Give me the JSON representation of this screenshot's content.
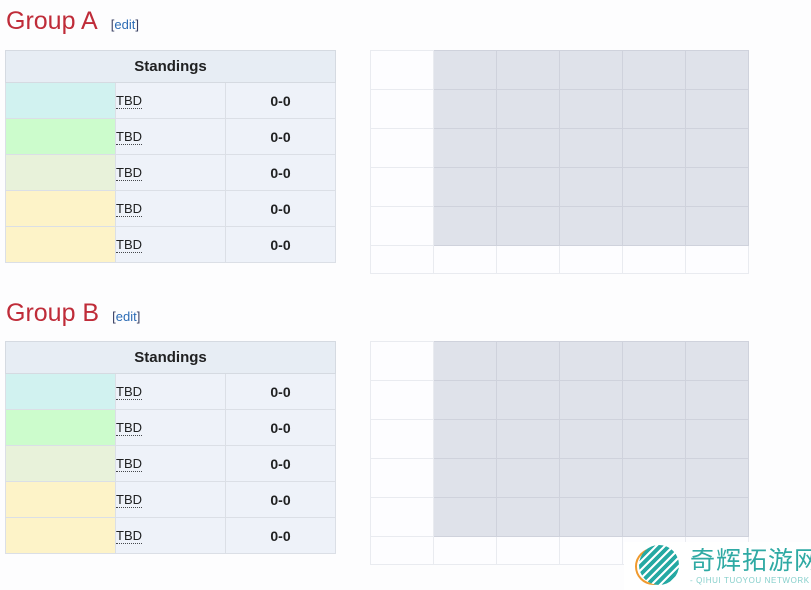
{
  "groups": [
    {
      "title": "Group A",
      "edit": {
        "open_bracket": "[",
        "label": "edit",
        "close_bracket": "]"
      },
      "standings": {
        "header": "Standings",
        "rows": [
          {
            "team": "TBD",
            "score": "0-0",
            "place_color": "#d1f2f0"
          },
          {
            "team": "TBD",
            "score": "0-0",
            "place_color": "#ccfccc"
          },
          {
            "team": "TBD",
            "score": "0-0",
            "place_color": "#e8f2da"
          },
          {
            "team": "TBD",
            "score": "0-0",
            "place_color": "#fdf3c8"
          },
          {
            "team": "TBD",
            "score": "0-0",
            "place_color": "#fdf3c8"
          }
        ]
      },
      "crosstable": {
        "rows": 6,
        "cols": 6,
        "filled_color": "#dfe2ea",
        "empty_color": "#fdfdff"
      }
    },
    {
      "title": "Group B",
      "edit": {
        "open_bracket": "[",
        "label": "edit",
        "close_bracket": "]"
      },
      "standings": {
        "header": "Standings",
        "rows": [
          {
            "team": "TBD",
            "score": "0-0",
            "place_color": "#d1f2f0"
          },
          {
            "team": "TBD",
            "score": "0-0",
            "place_color": "#ccfccc"
          },
          {
            "team": "TBD",
            "score": "0-0",
            "place_color": "#e8f2da"
          },
          {
            "team": "TBD",
            "score": "0-0",
            "place_color": "#fdf3c8"
          },
          {
            "team": "TBD",
            "score": "0-0",
            "place_color": "#fdf3c8"
          }
        ]
      },
      "crosstable": {
        "rows": 6,
        "cols": 6,
        "filled_color": "#dfe2ea",
        "empty_color": "#fdfdff"
      }
    }
  ],
  "watermark": {
    "name_cn": "奇辉拓游网",
    "name_en": "- QIHUI TUOYOU NETWORK -",
    "teal": "#2faaa4",
    "teal_light": "#86cfcb",
    "orange": "#f09a2e"
  },
  "colors": {
    "heading_red": "#bf2c39",
    "edit_link_blue": "#2d6cb5",
    "edit_bracket": "#383f63",
    "standings_header_bg": "#e7edf4",
    "standings_row_bg": "#eef2f9",
    "crosstable_filled": "#dfe2ea",
    "page_bg": "#fdfdfe"
  }
}
